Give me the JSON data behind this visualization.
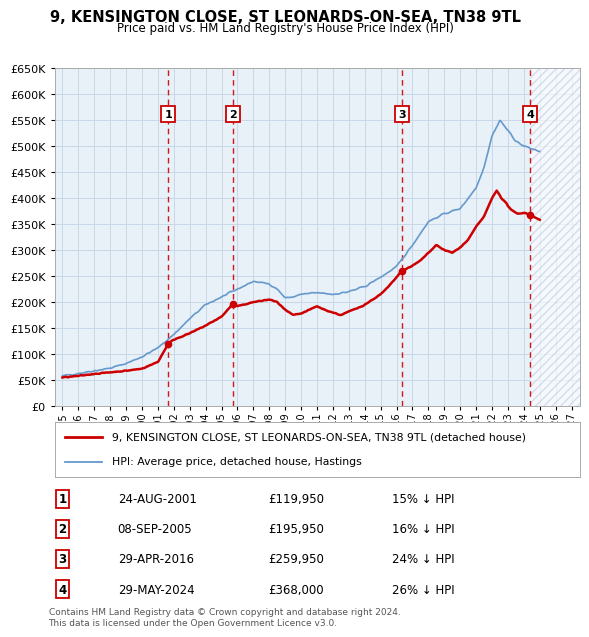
{
  "title": "9, KENSINGTON CLOSE, ST LEONARDS-ON-SEA, TN38 9TL",
  "subtitle": "Price paid vs. HM Land Registry's House Price Index (HPI)",
  "ylim": [
    0,
    650000
  ],
  "yticks": [
    0,
    50000,
    100000,
    150000,
    200000,
    250000,
    300000,
    350000,
    400000,
    450000,
    500000,
    550000,
    600000,
    650000
  ],
  "xlim_start": 1994.5,
  "xlim_end": 2027.5,
  "background_color": "#ffffff",
  "grid_color": "#c8d8e8",
  "plot_bg": "#e8f0f8",
  "sale_events": [
    {
      "year": 2001.65,
      "label": "1",
      "price": 119950
    },
    {
      "year": 2005.69,
      "label": "2",
      "price": 195950
    },
    {
      "year": 2016.33,
      "label": "3",
      "price": 259950
    },
    {
      "year": 2024.41,
      "label": "4",
      "price": 368000
    }
  ],
  "legend_line1": "9, KENSINGTON CLOSE, ST LEONARDS-ON-SEA, TN38 9TL (detached house)",
  "legend_line2": "HPI: Average price, detached house, Hastings",
  "legend_color1": "#cc0000",
  "legend_color2": "#6699cc",
  "table_rows": [
    [
      "1",
      "24-AUG-2001",
      "£119,950",
      "15% ↓ HPI"
    ],
    [
      "2",
      "08-SEP-2005",
      "£195,950",
      "16% ↓ HPI"
    ],
    [
      "3",
      "29-APR-2016",
      "£259,950",
      "24% ↓ HPI"
    ],
    [
      "4",
      "29-MAY-2024",
      "£368,000",
      "26% ↓ HPI"
    ]
  ],
  "footer": "Contains HM Land Registry data © Crown copyright and database right 2024.\nThis data is licensed under the Open Government Licence v3.0.",
  "hpi_future_start": 2024.41,
  "hpi_anchors": [
    [
      1995.0,
      58000
    ],
    [
      1996.0,
      63000
    ],
    [
      1997.0,
      68000
    ],
    [
      1998.0,
      73000
    ],
    [
      1999.0,
      82000
    ],
    [
      2000.0,
      95000
    ],
    [
      2001.0,
      112000
    ],
    [
      2002.0,
      138000
    ],
    [
      2003.0,
      168000
    ],
    [
      2004.0,
      195000
    ],
    [
      2005.0,
      210000
    ],
    [
      2006.0,
      225000
    ],
    [
      2007.0,
      240000
    ],
    [
      2008.0,
      235000
    ],
    [
      2008.5,
      225000
    ],
    [
      2009.0,
      208000
    ],
    [
      2009.5,
      210000
    ],
    [
      2010.0,
      215000
    ],
    [
      2011.0,
      218000
    ],
    [
      2012.0,
      215000
    ],
    [
      2013.0,
      220000
    ],
    [
      2014.0,
      230000
    ],
    [
      2015.0,
      248000
    ],
    [
      2016.0,
      268000
    ],
    [
      2017.0,
      310000
    ],
    [
      2018.0,
      355000
    ],
    [
      2019.0,
      370000
    ],
    [
      2020.0,
      380000
    ],
    [
      2021.0,
      420000
    ],
    [
      2021.5,
      460000
    ],
    [
      2022.0,
      520000
    ],
    [
      2022.5,
      550000
    ],
    [
      2023.0,
      530000
    ],
    [
      2023.5,
      510000
    ],
    [
      2024.0,
      500000
    ],
    [
      2024.5,
      495000
    ],
    [
      2025.0,
      490000
    ]
  ],
  "price_anchors": [
    [
      1995.0,
      55000
    ],
    [
      1996.0,
      58000
    ],
    [
      1997.0,
      62000
    ],
    [
      1998.0,
      65000
    ],
    [
      1999.0,
      68000
    ],
    [
      2000.0,
      72000
    ],
    [
      2001.0,
      85000
    ],
    [
      2001.65,
      119950
    ],
    [
      2002.0,
      128000
    ],
    [
      2003.0,
      140000
    ],
    [
      2004.0,
      155000
    ],
    [
      2005.0,
      172000
    ],
    [
      2005.69,
      195950
    ],
    [
      2006.0,
      192000
    ],
    [
      2007.0,
      200000
    ],
    [
      2008.0,
      205000
    ],
    [
      2008.5,
      200000
    ],
    [
      2009.0,
      185000
    ],
    [
      2009.5,
      175000
    ],
    [
      2010.0,
      178000
    ],
    [
      2010.5,
      185000
    ],
    [
      2011.0,
      192000
    ],
    [
      2011.5,
      185000
    ],
    [
      2012.0,
      180000
    ],
    [
      2012.5,
      175000
    ],
    [
      2013.0,
      182000
    ],
    [
      2013.5,
      188000
    ],
    [
      2014.0,
      195000
    ],
    [
      2014.5,
      205000
    ],
    [
      2015.0,
      215000
    ],
    [
      2015.5,
      230000
    ],
    [
      2016.0,
      248000
    ],
    [
      2016.33,
      259950
    ],
    [
      2017.0,
      270000
    ],
    [
      2017.5,
      280000
    ],
    [
      2018.0,
      295000
    ],
    [
      2018.5,
      310000
    ],
    [
      2019.0,
      300000
    ],
    [
      2019.5,
      295000
    ],
    [
      2020.0,
      305000
    ],
    [
      2020.5,
      320000
    ],
    [
      2021.0,
      345000
    ],
    [
      2021.5,
      365000
    ],
    [
      2022.0,
      400000
    ],
    [
      2022.3,
      415000
    ],
    [
      2022.6,
      400000
    ],
    [
      2022.9,
      390000
    ],
    [
      2023.0,
      385000
    ],
    [
      2023.3,
      375000
    ],
    [
      2023.6,
      370000
    ],
    [
      2024.0,
      372000
    ],
    [
      2024.41,
      368000
    ],
    [
      2025.0,
      358000
    ]
  ]
}
